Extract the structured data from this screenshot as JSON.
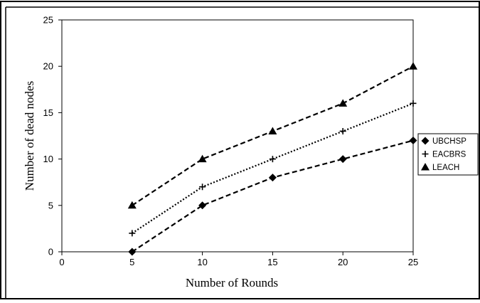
{
  "chart_data": {
    "type": "line",
    "title": "",
    "xlabel": "Number of Rounds",
    "ylabel": "Number of dead nodes",
    "xlim": [
      0,
      25
    ],
    "ylim": [
      0,
      25
    ],
    "xticks": [
      0,
      5,
      10,
      15,
      20,
      25
    ],
    "yticks": [
      0,
      5,
      10,
      15,
      20,
      25
    ],
    "grid": false,
    "legend_position": "right",
    "x": [
      5,
      10,
      15,
      20,
      25
    ],
    "series": [
      {
        "name": "UBCHSP",
        "marker": "diamond",
        "line": "dashed",
        "values": [
          0,
          5,
          8,
          10,
          12
        ]
      },
      {
        "name": "EACBRS",
        "marker": "plus",
        "line": "dotted",
        "values": [
          2,
          7,
          10,
          13,
          16
        ]
      },
      {
        "name": "LEACH",
        "marker": "triangle",
        "line": "dashed",
        "values": [
          5,
          10,
          13,
          16,
          20
        ]
      }
    ],
    "colors": {
      "line": "#000000",
      "background": "#ffffff"
    }
  }
}
